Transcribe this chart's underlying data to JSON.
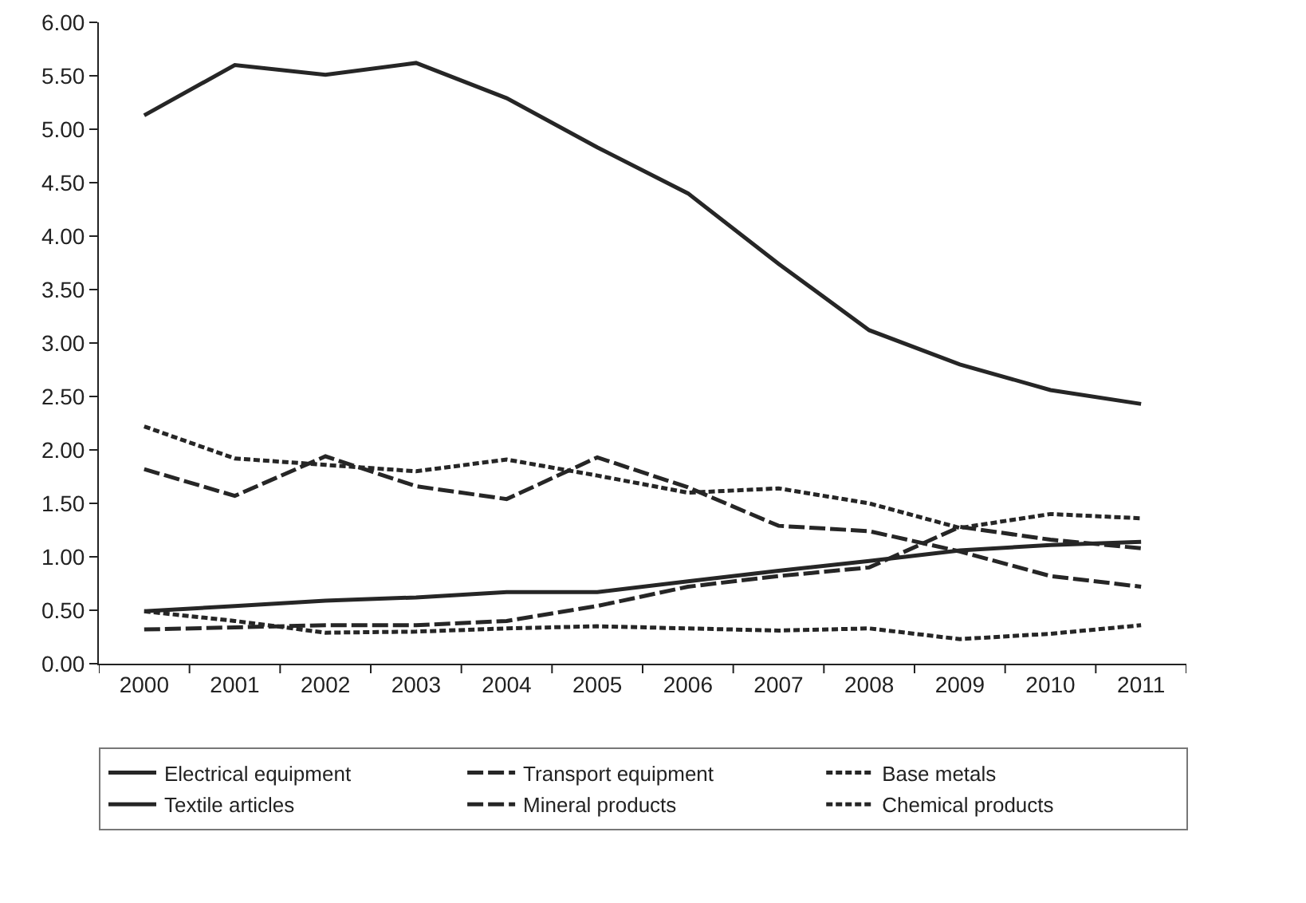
{
  "chart_data": {
    "type": "line",
    "categories": [
      "2000",
      "2001",
      "2002",
      "2003",
      "2004",
      "2005",
      "2006",
      "2007",
      "2008",
      "2009",
      "2010",
      "2011"
    ],
    "ylim": [
      0,
      6
    ],
    "yticks": [
      {
        "value": 0,
        "label": "0.00"
      },
      {
        "value": 0.5,
        "label": "0.50"
      },
      {
        "value": 1,
        "label": "1.00"
      },
      {
        "value": 1.5,
        "label": "1.50"
      },
      {
        "value": 2,
        "label": "2.00"
      },
      {
        "value": 2.5,
        "label": "2.50"
      },
      {
        "value": 3,
        "label": "3.00"
      },
      {
        "value": 3.5,
        "label": "3.50"
      },
      {
        "value": 4,
        "label": "4.00"
      },
      {
        "value": 4.5,
        "label": "4.50"
      },
      {
        "value": 5,
        "label": "5.00"
      },
      {
        "value": 5.5,
        "label": "5.50"
      },
      {
        "value": 6,
        "label": "6.00"
      }
    ],
    "grid": false,
    "legend": "bottom",
    "marker": "none",
    "series": [
      {
        "name": "Electrical equipment",
        "color": "#262626",
        "line_style": "solid",
        "values": [
          0.49,
          0.54,
          0.59,
          0.62,
          0.67,
          0.67,
          0.77,
          0.87,
          0.96,
          1.06,
          1.11,
          1.14
        ]
      },
      {
        "name": "Transport equipment",
        "color": "#262626",
        "line_style": "dashed",
        "values": [
          0.32,
          0.34,
          0.36,
          0.36,
          0.4,
          0.54,
          0.72,
          0.82,
          0.9,
          1.28,
          1.16,
          1.08
        ]
      },
      {
        "name": "Base metals",
        "color": "#262626",
        "line_style": "dotted",
        "values": [
          2.22,
          1.92,
          1.86,
          1.8,
          1.91,
          1.76,
          1.6,
          1.64,
          1.5,
          1.27,
          1.4,
          1.36
        ]
      },
      {
        "name": "Textile articles",
        "color": "#262626",
        "line_style": "solid",
        "values": [
          5.13,
          5.6,
          5.51,
          5.62,
          5.29,
          4.83,
          4.4,
          3.74,
          3.12,
          2.8,
          2.56,
          2.43
        ]
      },
      {
        "name": "Mineral products",
        "color": "#262626",
        "line_style": "dashed",
        "values": [
          1.82,
          1.57,
          1.94,
          1.66,
          1.54,
          1.93,
          1.65,
          1.29,
          1.24,
          1.05,
          0.82,
          0.72
        ]
      },
      {
        "name": "Chemical products",
        "color": "#262626",
        "line_style": "dotted",
        "values": [
          0.49,
          0.4,
          0.29,
          0.3,
          0.33,
          0.35,
          0.33,
          0.31,
          0.33,
          0.23,
          0.28,
          0.36
        ]
      }
    ]
  }
}
